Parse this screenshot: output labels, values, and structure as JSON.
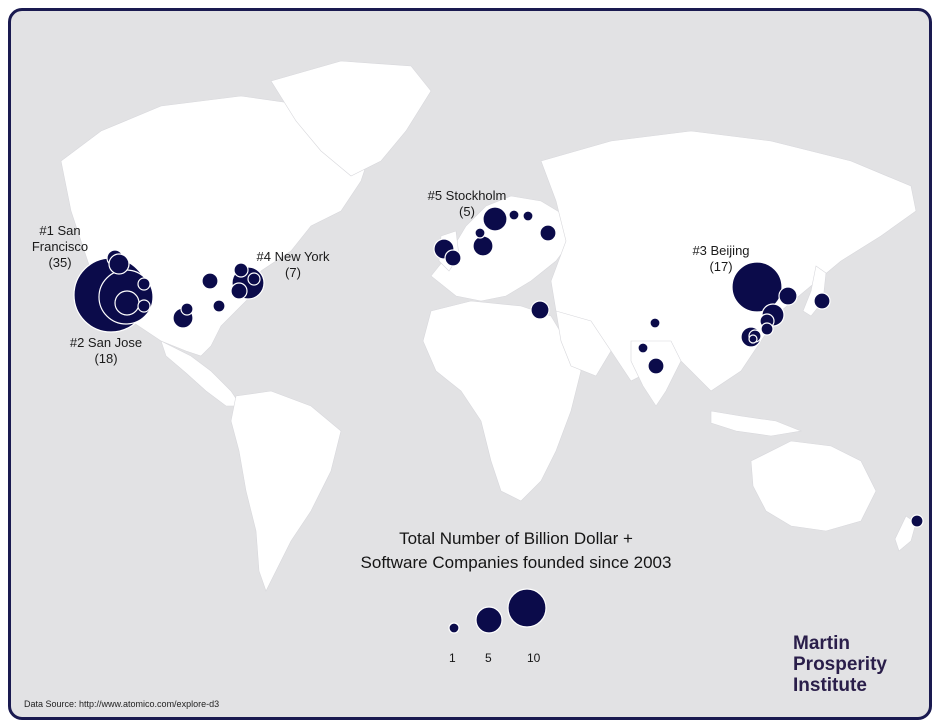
{
  "labels": {
    "sf_name": "#1 San\nFrancisco",
    "sf_count": "(35)",
    "sj_name": "#2 San Jose",
    "sj_count": "(18)",
    "bj_name": "#3 Beijing",
    "bj_count": "(17)",
    "ny_name": "#4 New York",
    "ny_count": "(7)",
    "st_name": "#5 Stockholm",
    "st_count": "(5)"
  },
  "legend": {
    "title_line1": "Total Number of Billion Dollar +",
    "title_line2": "Software Companies founded  since 2003",
    "values": [
      "1",
      "5",
      "10"
    ]
  },
  "source": "Data Source: http://www.atomico.com/explore-d3",
  "brand": {
    "line1": "Martin",
    "line2": "Prosperity",
    "line3": "Institute"
  },
  "colors": {
    "bubble": "#0b0b4a",
    "ocean": "#e2e2e4",
    "land": "#ffffff",
    "brand": "#2a1e4a"
  }
}
